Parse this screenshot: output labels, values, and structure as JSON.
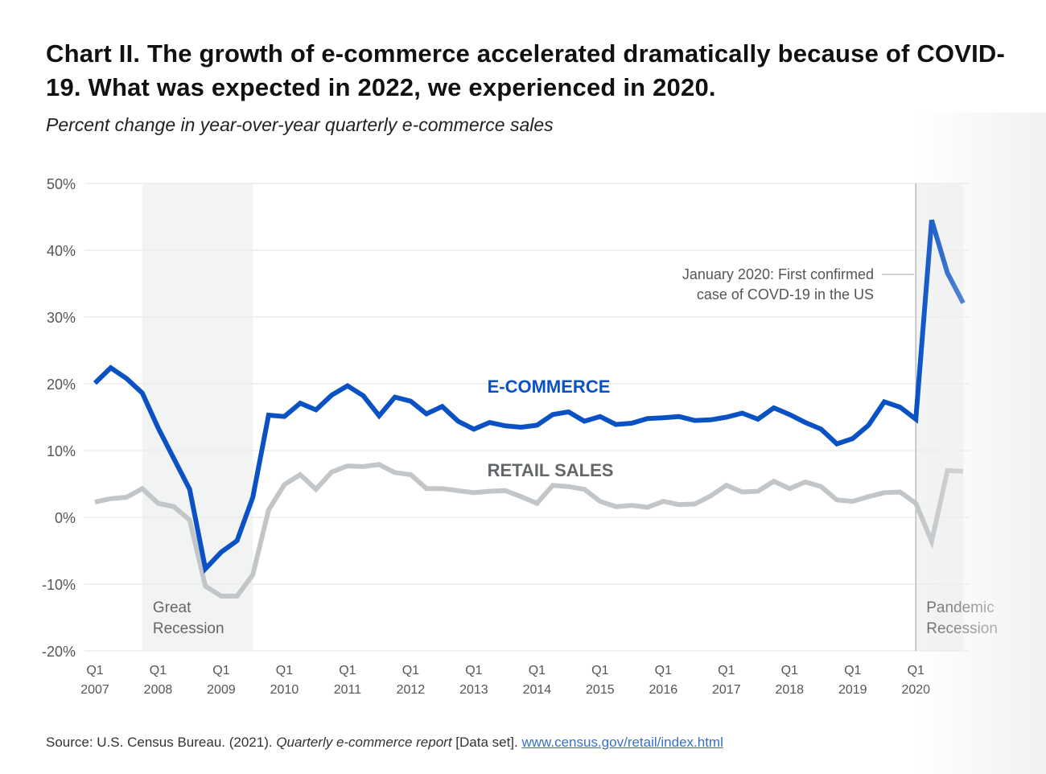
{
  "header": {
    "title": "Chart II. The growth of e-commerce accelerated dramatically because of COVID-19. What was expected in 2022, we experienced in 2020.",
    "subtitle": "Percent change in year-over-year quarterly e-commerce sales"
  },
  "source": {
    "prefix": "Source: U.S. Census Bureau. (2021). ",
    "title_italic": "Quarterly e-commerce report",
    "suffix": " [Data set]. ",
    "link_text": "www.census.gov/retail/index.html"
  },
  "colors": {
    "ecommerce": "#0a52c4",
    "retail": "#c3c6c9",
    "recession_band": "#f2f3f3",
    "grid": "#ececec",
    "axis_text": "#555555",
    "retail_label": "#63676a"
  },
  "chart_data": {
    "type": "line",
    "title": "Chart II. The growth of e-commerce accelerated dramatically because of COVID-19. What was expected in 2022, we experienced in 2020.",
    "subtitle": "Percent change in year-over-year quarterly e-commerce sales",
    "xlabel": "",
    "ylabel": "",
    "ylim": [
      -20,
      50
    ],
    "yticks": [
      50,
      40,
      30,
      20,
      10,
      0,
      -10,
      -20
    ],
    "ytick_labels": [
      "50%",
      "40%",
      "30%",
      "20%",
      "10%",
      "0%",
      "-10%",
      "-20%"
    ],
    "x_start": "2007Q1",
    "quarters_count": 56,
    "xtick_labels": [
      {
        "q": "Q1",
        "year": "2007",
        "index": 0
      },
      {
        "q": "Q1",
        "year": "2008",
        "index": 4
      },
      {
        "q": "Q1",
        "year": "2009",
        "index": 8
      },
      {
        "q": "Q1",
        "year": "2010",
        "index": 12
      },
      {
        "q": "Q1",
        "year": "2011",
        "index": 16
      },
      {
        "q": "Q1",
        "year": "2012",
        "index": 20
      },
      {
        "q": "Q1",
        "year": "2013",
        "index": 24
      },
      {
        "q": "Q1",
        "year": "2014",
        "index": 28
      },
      {
        "q": "Q1",
        "year": "2015",
        "index": 32
      },
      {
        "q": "Q1",
        "year": "2016",
        "index": 36
      },
      {
        "q": "Q1",
        "year": "2017",
        "index": 40
      },
      {
        "q": "Q1",
        "year": "2018",
        "index": 44
      },
      {
        "q": "Q1",
        "year": "2019",
        "index": 48
      },
      {
        "q": "Q1",
        "year": "2020",
        "index": 52
      }
    ],
    "grid": true,
    "series": [
      {
        "name": "E-COMMERCE",
        "values": [
          20.1,
          22.4,
          20.8,
          18.6,
          13.4,
          8.8,
          4.2,
          -7.7,
          -5.2,
          -3.5,
          3.0,
          15.3,
          15.1,
          17.1,
          16.1,
          18.3,
          19.7,
          18.2,
          15.2,
          18.0,
          17.4,
          15.5,
          16.6,
          14.4,
          13.2,
          14.2,
          13.7,
          13.5,
          13.8,
          15.4,
          15.8,
          14.4,
          15.1,
          13.9,
          14.1,
          14.8,
          14.9,
          15.1,
          14.5,
          14.6,
          15.0,
          15.6,
          14.7,
          16.4,
          15.4,
          14.2,
          13.2,
          11.0,
          11.8,
          13.8,
          17.3,
          16.5,
          14.7,
          44.5,
          36.6,
          32.1
        ]
      },
      {
        "name": "RETAIL SALES",
        "values": [
          2.3,
          2.8,
          3.0,
          4.3,
          2.1,
          1.6,
          -0.4,
          -10.3,
          -11.8,
          -11.8,
          -8.6,
          1.1,
          4.9,
          6.4,
          4.2,
          6.8,
          7.7,
          7.6,
          7.9,
          6.7,
          6.4,
          4.3,
          4.3,
          4.0,
          3.7,
          3.9,
          4.0,
          3.1,
          2.1,
          4.8,
          4.6,
          4.2,
          2.4,
          1.6,
          1.8,
          1.5,
          2.4,
          1.9,
          2.0,
          3.2,
          4.8,
          3.8,
          3.9,
          5.4,
          4.3,
          5.3,
          4.6,
          2.6,
          2.4,
          3.1,
          3.7,
          3.8,
          2.1,
          -3.6,
          7.0,
          6.9
        ]
      }
    ],
    "series_labels": [
      {
        "text": "E-COMMERCE",
        "at_index": 29,
        "at_value": 19.5
      },
      {
        "text": "RETAIL SALES",
        "at_index": 29,
        "at_value": 7.0
      }
    ],
    "shaded_regions": [
      {
        "label_lines": [
          "Great",
          "Recession"
        ],
        "from_index": 3,
        "to_index": 10
      },
      {
        "label_lines": [
          "Pandemic",
          "Recession"
        ],
        "from_index": 52,
        "to_index": 55
      }
    ],
    "annotations": [
      {
        "lines": [
          "January 2020: First confirmed",
          "case of COVD-19 in the US"
        ],
        "marker_index": 52
      }
    ],
    "legend": "inline-labels"
  }
}
